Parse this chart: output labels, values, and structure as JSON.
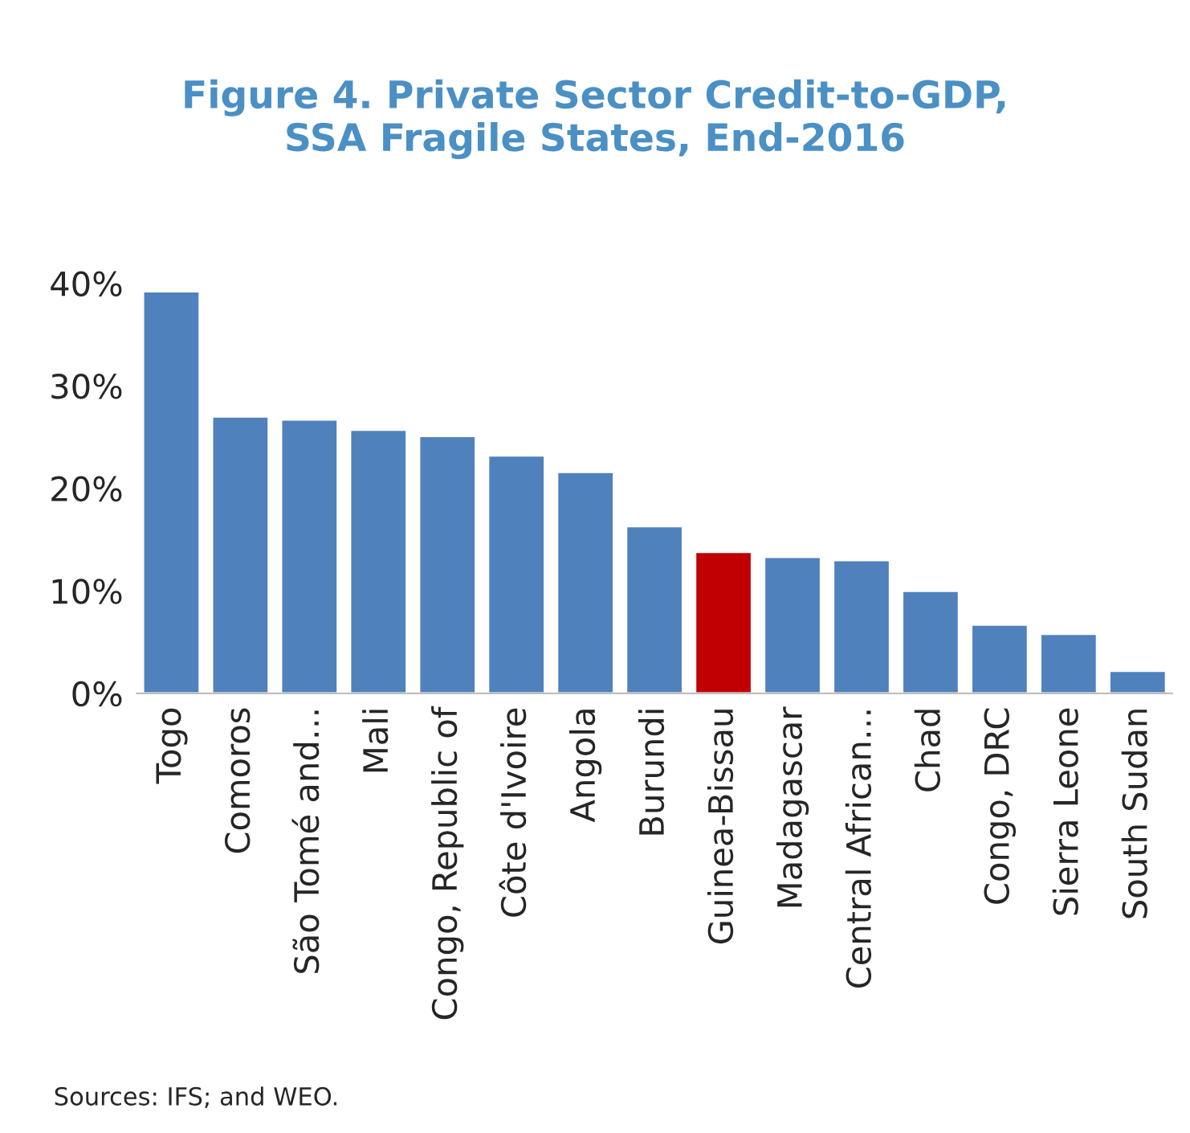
{
  "chart_data": {
    "type": "bar",
    "title": "Figure 4. Private Sector Credit-to-GDP,\nSSA Fragile States, End-2016",
    "categories": [
      "Togo",
      "Comoros",
      "São Tomé and…",
      "Mali",
      "Congo, Republic of",
      "Côte d'Ivoire",
      "Angola",
      "Burundi",
      "Guinea-Bissau",
      "Madagascar",
      "Central African…",
      "Chad",
      "Congo, DRC",
      "Sierra Leone",
      "South Sudan"
    ],
    "values": [
      39.2,
      27.0,
      26.7,
      25.7,
      25.1,
      23.2,
      21.6,
      16.3,
      13.8,
      13.3,
      13.0,
      10.0,
      6.7,
      5.8,
      2.2
    ],
    "colors": [
      "#4f81bd",
      "#4f81bd",
      "#4f81bd",
      "#4f81bd",
      "#4f81bd",
      "#4f81bd",
      "#4f81bd",
      "#4f81bd",
      "#c00000",
      "#4f81bd",
      "#4f81bd",
      "#4f81bd",
      "#4f81bd",
      "#4f81bd",
      "#4f81bd"
    ],
    "ylim": [
      0,
      40
    ],
    "yticks": [
      {
        "value": 0,
        "label": "0%"
      },
      {
        "value": 10,
        "label": "10%"
      },
      {
        "value": 20,
        "label": "20%"
      },
      {
        "value": 30,
        "label": "30%"
      },
      {
        "value": 40,
        "label": "40%"
      }
    ],
    "grid": false,
    "annotations": [
      "Sources: IFS; and WEO."
    ]
  }
}
